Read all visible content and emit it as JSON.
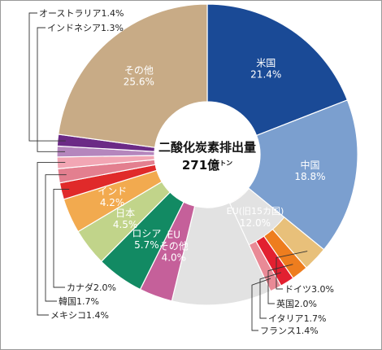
{
  "chart_data": {
    "type": "pie",
    "center_label": {
      "line1": "二酸化炭素排出量",
      "line2_value": "271億",
      "line2_unit": "トン"
    },
    "slices": [
      {
        "name": "米国",
        "value": 21.4,
        "label": "21.4%",
        "color": "#1a4a96",
        "placement": "inside"
      },
      {
        "name": "中国",
        "value": 18.8,
        "label": "18.8%",
        "color": "#7b9fcf",
        "placement": "inside"
      },
      {
        "name": "ドイツ",
        "value": 3.0,
        "label": "3.0%",
        "color": "#e8c07a",
        "placement": "outside-bottom"
      },
      {
        "name": "英国",
        "value": 2.0,
        "label": "2.0%",
        "color": "#ee7d1e",
        "placement": "outside-bottom"
      },
      {
        "name": "イタリア",
        "value": 1.7,
        "label": "1.7%",
        "color": "#e22030",
        "placement": "outside-bottom"
      },
      {
        "name": "フランス",
        "value": 1.4,
        "label": "1.4%",
        "color": "#e98a96",
        "placement": "outside-bottom"
      },
      {
        "name": "EU(旧15カ国)",
        "value": 12.0,
        "label": "12.0%",
        "color": "#e2e2e2",
        "placement": "bracket"
      },
      {
        "name": "EU\nその他",
        "value": 4.0,
        "label": "4.0%",
        "color": "#c5609a",
        "placement": "inside"
      },
      {
        "name": "ロシア",
        "value": 5.7,
        "label": "5.7%",
        "color": "#128a63",
        "placement": "inside"
      },
      {
        "name": "日本",
        "value": 4.5,
        "label": "4.5%",
        "color": "#c1d48a",
        "placement": "inside"
      },
      {
        "name": "インド",
        "value": 4.2,
        "label": "4.2%",
        "color": "#f2aa4f",
        "placement": "inside"
      },
      {
        "name": "カナダ",
        "value": 2.0,
        "label": "2.0%",
        "color": "#e02a2a",
        "placement": "outside-left"
      },
      {
        "name": "韓国",
        "value": 1.7,
        "label": "1.7%",
        "color": "#e37f8f",
        "placement": "outside-left"
      },
      {
        "name": "メキシコ",
        "value": 1.4,
        "label": "1.4%",
        "color": "#f2a6b4",
        "placement": "outside-left"
      },
      {
        "name": "インドネシア",
        "value": 1.3,
        "label": "1.3%",
        "color": "#b586bd",
        "placement": "outside-top"
      },
      {
        "name": "オーストラリア",
        "value": 1.4,
        "label": "1.4%",
        "color": "#6b2a86",
        "placement": "outside-top"
      },
      {
        "name": "その他",
        "value": 25.6,
        "label": "25.6%",
        "color": "#c8ab86",
        "placement": "inside"
      }
    ]
  }
}
